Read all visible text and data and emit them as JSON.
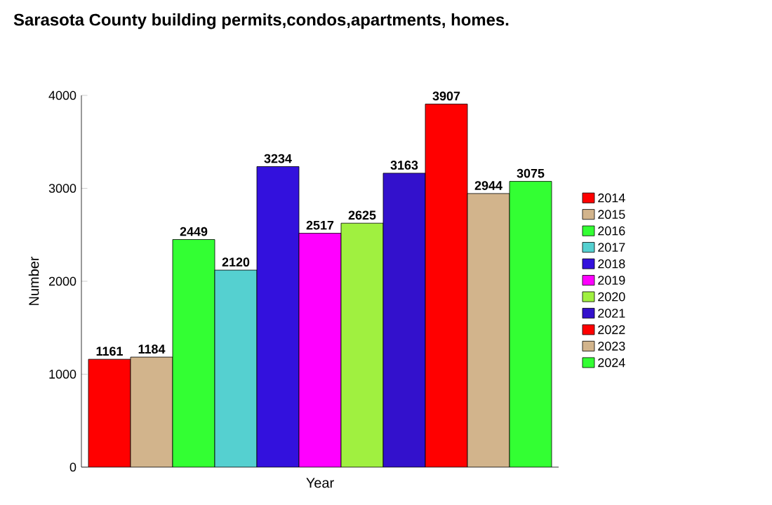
{
  "chart_data": {
    "type": "bar",
    "title": "Sarasota County building permits,condos,apartments, homes.",
    "xlabel": "Year",
    "ylabel": "Number",
    "categories": [
      null
    ],
    "series": [
      {
        "name": "2014",
        "color": "#ff0000",
        "values": [
          1161
        ]
      },
      {
        "name": "2015",
        "color": "#d2b48c",
        "values": [
          1184
        ]
      },
      {
        "name": "2016",
        "color": "#33ff33",
        "values": [
          2449
        ]
      },
      {
        "name": "2017",
        "color": "#55d0d0",
        "values": [
          2120
        ]
      },
      {
        "name": "2018",
        "color": "#3311dd",
        "values": [
          3234
        ]
      },
      {
        "name": "2019",
        "color": "#ff00ff",
        "values": [
          2517
        ]
      },
      {
        "name": "2020",
        "color": "#a0f040",
        "values": [
          2625
        ]
      },
      {
        "name": "2021",
        "color": "#3311cc",
        "values": [
          3163
        ]
      },
      {
        "name": "2022",
        "color": "#ff0000",
        "values": [
          3907
        ]
      },
      {
        "name": "2023",
        "color": "#d2b48c",
        "values": [
          2944
        ]
      },
      {
        "name": "2024",
        "color": "#33ff33",
        "values": [
          3075
        ]
      }
    ],
    "ylim": [
      0,
      4000
    ],
    "yticks": [
      0,
      1000,
      2000,
      3000,
      4000
    ],
    "data_labels": true,
    "legend": "right",
    "tick_labels": "y",
    "grid": false
  }
}
